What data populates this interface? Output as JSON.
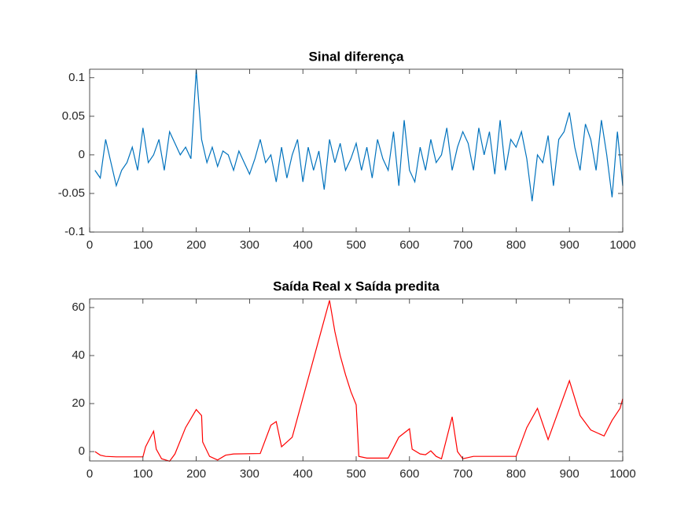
{
  "chart_data": [
    {
      "type": "line",
      "title": "Sinal diferença",
      "x": [
        10,
        20,
        30,
        40,
        50,
        60,
        70,
        80,
        90,
        100,
        110,
        120,
        130,
        140,
        150,
        160,
        170,
        180,
        190,
        200,
        210,
        220,
        230,
        240,
        250,
        260,
        270,
        280,
        290,
        300,
        310,
        320,
        330,
        340,
        350,
        360,
        370,
        380,
        390,
        400,
        410,
        420,
        430,
        440,
        450,
        460,
        470,
        480,
        490,
        500,
        510,
        520,
        530,
        540,
        550,
        560,
        570,
        580,
        590,
        600,
        610,
        620,
        630,
        640,
        650,
        660,
        670,
        680,
        690,
        700,
        710,
        720,
        730,
        740,
        750,
        760,
        770,
        780,
        790,
        800,
        810,
        820,
        830,
        840,
        850,
        860,
        870,
        880,
        890,
        900,
        910,
        920,
        930,
        940,
        950,
        960,
        970,
        980,
        990,
        1000
      ],
      "series": [
        {
          "color": "#0072bd",
          "values": [
            -0.02,
            -0.03,
            0.02,
            -0.01,
            -0.04,
            -0.02,
            -0.01,
            0.01,
            -0.02,
            0.035,
            -0.01,
            0.0,
            0.02,
            -0.02,
            0.03,
            0.015,
            0.0,
            0.01,
            -0.005,
            0.11,
            0.02,
            -0.01,
            0.01,
            -0.015,
            0.005,
            0.0,
            -0.02,
            0.005,
            -0.01,
            -0.025,
            -0.005,
            0.02,
            -0.01,
            0.0,
            -0.035,
            0.01,
            -0.03,
            0.0,
            0.02,
            -0.035,
            0.01,
            -0.02,
            0.005,
            -0.045,
            0.02,
            -0.01,
            0.015,
            -0.02,
            -0.005,
            0.015,
            -0.02,
            0.01,
            -0.03,
            0.02,
            -0.005,
            -0.02,
            0.03,
            -0.04,
            0.045,
            -0.02,
            -0.035,
            0.01,
            -0.02,
            0.02,
            -0.01,
            0.0,
            0.035,
            -0.02,
            0.01,
            0.03,
            0.015,
            -0.02,
            0.035,
            0.0,
            0.03,
            -0.025,
            0.045,
            -0.02,
            0.02,
            0.01,
            0.03,
            -0.005,
            -0.06,
            0.0,
            -0.01,
            0.025,
            -0.04,
            0.02,
            0.03,
            0.055,
            0.01,
            -0.02,
            0.04,
            0.02,
            -0.02,
            0.045,
            0.0,
            -0.055,
            0.03,
            -0.04
          ]
        }
      ],
      "xlim": [
        0,
        1000
      ],
      "xticks": [
        0,
        100,
        200,
        300,
        400,
        500,
        600,
        700,
        800,
        900,
        1000
      ],
      "ylim": [
        -0.1,
        0.111
      ],
      "yticks": [
        -0.1,
        -0.05,
        0,
        0.05,
        0.1
      ]
    },
    {
      "type": "line",
      "title": "Saída Real x Saída predita",
      "x": [
        10,
        20,
        30,
        50,
        100,
        105,
        120,
        125,
        135,
        150,
        160,
        180,
        200,
        210,
        212,
        225,
        240,
        255,
        270,
        320,
        340,
        350,
        360,
        370,
        380,
        450,
        460,
        470,
        480,
        490,
        500,
        505,
        520,
        560,
        580,
        600,
        605,
        620,
        630,
        640,
        650,
        660,
        680,
        690,
        700,
        720,
        800,
        820,
        840,
        860,
        900,
        920,
        940,
        965,
        980,
        995,
        1000
      ],
      "series": [
        {
          "color": "#ff0000",
          "values": [
            0,
            -1.5,
            -2,
            -2.2,
            -2.2,
            2,
            8.5,
            1,
            -3,
            -4,
            -1,
            10,
            17.5,
            15,
            4,
            -2,
            -3.5,
            -1.5,
            -1,
            -0.8,
            11,
            12.5,
            2,
            4,
            6,
            63,
            50,
            40,
            32,
            25,
            19.5,
            -2,
            -2.7,
            -2.7,
            6,
            9.5,
            1,
            -1,
            -1.3,
            0.3,
            -2,
            -3,
            14.5,
            0,
            -3,
            -2,
            -2,
            10,
            18,
            5,
            29.5,
            15,
            9,
            6.5,
            13,
            18,
            22
          ]
        }
      ],
      "xlim": [
        0,
        1000
      ],
      "xticks": [
        0,
        100,
        200,
        300,
        400,
        500,
        600,
        700,
        800,
        900,
        1000
      ],
      "ylim": [
        -3.9,
        63.6
      ],
      "yticks": [
        0,
        20,
        40,
        60
      ]
    }
  ]
}
